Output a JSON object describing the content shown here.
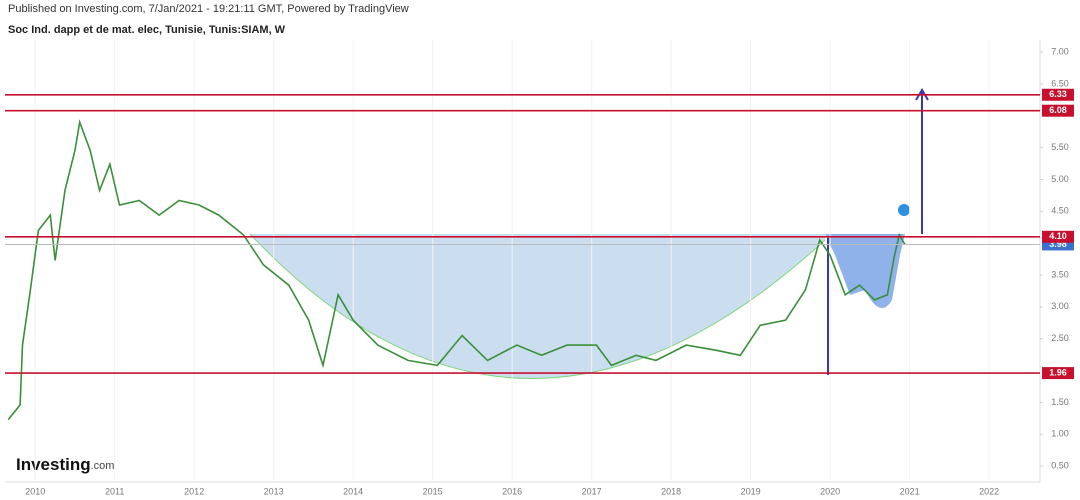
{
  "header": "Published on Investing.com, 7/Jan/2021 - 19:21:11 GMT, Powered by TradingView",
  "chart_data": {
    "type": "line",
    "title": "Soc Ind. dapp et de mat. elec, Tunisie, Tunis:SIAM, W",
    "logo": "Investing",
    "logo_suffix": ".com",
    "color": "#3a8f3a",
    "x": [
      2009.66,
      2009.81,
      2009.84,
      2009.94,
      2010.04,
      2010.19,
      2010.25,
      2010.375,
      2010.5,
      2010.56,
      2010.69,
      2010.81,
      2010.94,
      2011.06,
      2011.31,
      2011.56,
      2011.81,
      2012.06,
      2012.31,
      2012.62,
      2012.87,
      2013.19,
      2013.44,
      2013.62,
      2013.81,
      2014.0,
      2014.31,
      2014.69,
      2015.06,
      2015.37,
      2015.69,
      2016.06,
      2016.37,
      2016.69,
      2017.06,
      2017.25,
      2017.56,
      2017.81,
      2018.19,
      2018.56,
      2018.87,
      2019.12,
      2019.44,
      2019.69,
      2019.87,
      2020.0,
      2020.19,
      2020.37,
      2020.56,
      2020.72,
      2020.81,
      2020.87,
      2020.94
    ],
    "values": [
      1.23,
      1.46,
      2.4,
      3.27,
      4.2,
      4.44,
      3.73,
      4.83,
      5.46,
      5.9,
      5.46,
      4.83,
      5.24,
      4.6,
      4.67,
      4.44,
      4.67,
      4.6,
      4.44,
      4.13,
      3.66,
      3.34,
      2.79,
      2.08,
      3.19,
      2.79,
      2.4,
      2.16,
      2.08,
      2.55,
      2.16,
      2.4,
      2.24,
      2.4,
      2.4,
      2.08,
      2.24,
      2.16,
      2.4,
      2.32,
      2.24,
      2.71,
      2.79,
      3.27,
      4.05,
      3.81,
      3.19,
      3.34,
      3.11,
      3.19,
      3.81,
      4.13,
      3.98
    ],
    "xlim": [
      2009.62,
      2022.64
    ],
    "xticks": [
      2010,
      2011,
      2012,
      2013,
      2014,
      2015,
      2016,
      2017,
      2018,
      2019,
      2020,
      2021,
      2022
    ],
    "ylim": [
      0.25,
      7.19
    ],
    "yticks": [
      {
        "value": 7,
        "label": "7.00"
      },
      {
        "value": 6.5,
        "label": "6.50"
      },
      {
        "value": 5.5,
        "label": "5.50"
      },
      {
        "value": 5,
        "label": "5.00"
      },
      {
        "value": 4.5,
        "label": "4.50"
      },
      {
        "value": 3.5,
        "label": "3.50"
      },
      {
        "value": 3,
        "label": "3.00"
      },
      {
        "value": 2.5,
        "label": "2.50"
      },
      {
        "value": 1.5,
        "label": "1.50"
      },
      {
        "value": 1,
        "label": "1.00"
      },
      {
        "value": 0.5,
        "label": "0.50"
      }
    ],
    "price_lines": [
      {
        "value": 6.33,
        "label": "6.33"
      },
      {
        "value": 6.08,
        "label": "6.08"
      },
      {
        "value": 4.1,
        "label": "4.10"
      },
      {
        "value": 1.96,
        "label": "1.96"
      }
    ],
    "price_line_color": "#c8102e",
    "last_price": {
      "value": 3.98,
      "label": "3.98"
    },
    "last_price_color": "#3b6fd0"
  }
}
